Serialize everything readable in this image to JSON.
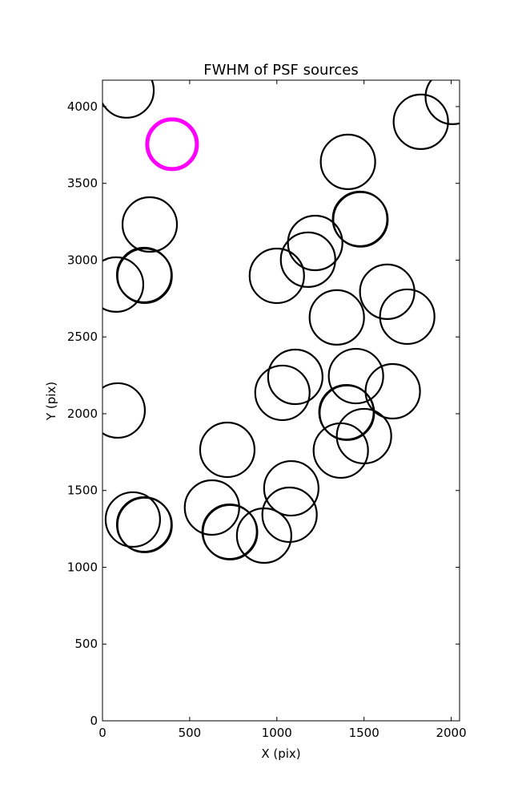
{
  "chart_data": {
    "type": "scatter",
    "title": "FWHM of PSF sources",
    "xlabel": "X (pix)",
    "ylabel": "Y (pix)",
    "xlim": [
      0,
      2048
    ],
    "ylim": [
      0,
      4172
    ],
    "grid": false,
    "xticks": [
      0,
      500,
      1000,
      1500,
      2000
    ],
    "yticks": [
      0,
      500,
      1000,
      1500,
      2000,
      2500,
      3000,
      3500,
      4000
    ],
    "marker": "open-circle",
    "colors": {
      "default": "#000000",
      "highlight": "#ff00ff"
    },
    "points": [
      {
        "x": 138,
        "y": 4105
      },
      {
        "x": 399,
        "y": 3755,
        "highlight": true
      },
      {
        "x": 271,
        "y": 3232
      },
      {
        "x": 239,
        "y": 2903
      },
      {
        "x": 242,
        "y": 2898
      },
      {
        "x": 78,
        "y": 2841
      },
      {
        "x": 87,
        "y": 2021
      },
      {
        "x": 174,
        "y": 1311
      },
      {
        "x": 239,
        "y": 1279
      },
      {
        "x": 242,
        "y": 1275
      },
      {
        "x": 628,
        "y": 1389
      },
      {
        "x": 716,
        "y": 1765
      },
      {
        "x": 729,
        "y": 1232
      },
      {
        "x": 732,
        "y": 1228
      },
      {
        "x": 927,
        "y": 1206
      },
      {
        "x": 1073,
        "y": 1342
      },
      {
        "x": 1083,
        "y": 1514
      },
      {
        "x": 1000,
        "y": 2898
      },
      {
        "x": 1032,
        "y": 2136
      },
      {
        "x": 1106,
        "y": 2240
      },
      {
        "x": 1179,
        "y": 3003
      },
      {
        "x": 1220,
        "y": 3112
      },
      {
        "x": 1344,
        "y": 2627
      },
      {
        "x": 1408,
        "y": 3640
      },
      {
        "x": 1477,
        "y": 3269
      },
      {
        "x": 1480,
        "y": 3265
      },
      {
        "x": 1367,
        "y": 1760
      },
      {
        "x": 1399,
        "y": 2010
      },
      {
        "x": 1402,
        "y": 2006
      },
      {
        "x": 1500,
        "y": 1854
      },
      {
        "x": 1454,
        "y": 2245
      },
      {
        "x": 1665,
        "y": 2146
      },
      {
        "x": 1633,
        "y": 2794
      },
      {
        "x": 1748,
        "y": 2632
      },
      {
        "x": 1826,
        "y": 3901
      },
      {
        "x": 2009,
        "y": 4063
      }
    ]
  }
}
